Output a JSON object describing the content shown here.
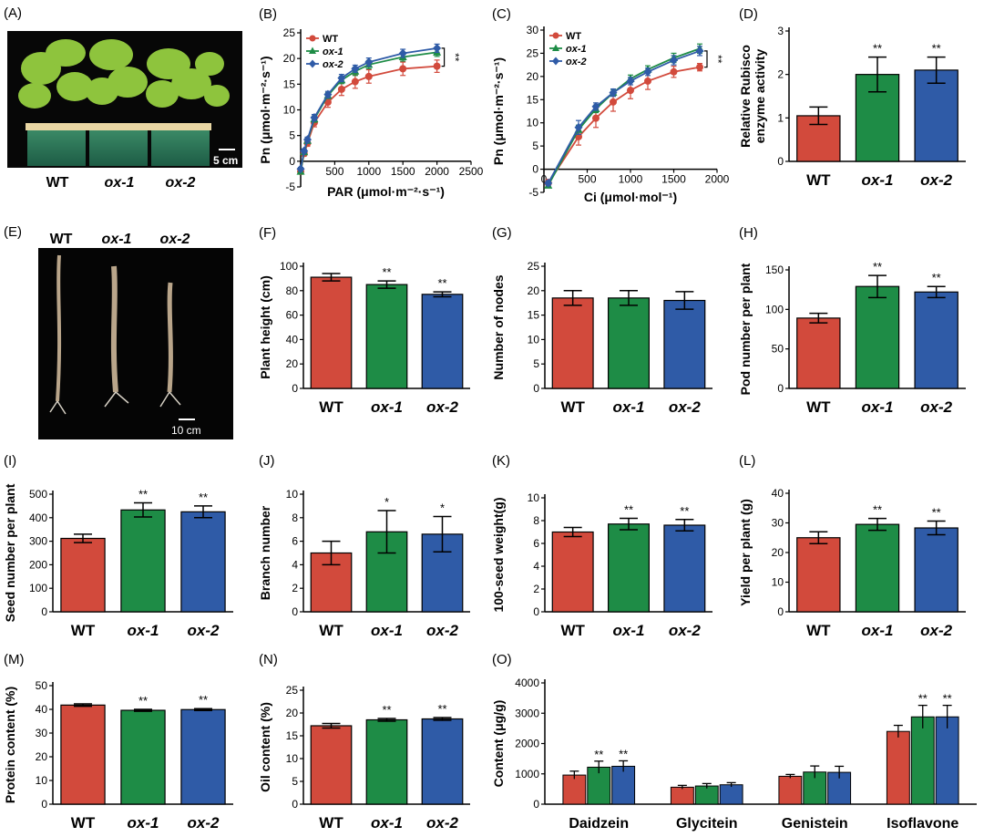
{
  "colors": {
    "WT": "#d24a3c",
    "ox1": "#1e8c46",
    "ox2": "#2f5ba7"
  },
  "panels": {
    "A": {
      "label": "(A)",
      "groups": [
        "WT",
        "ox-1",
        "ox-2"
      ],
      "scalebar": "5 cm"
    },
    "E": {
      "label": "(E)",
      "groups": [
        "WT",
        "ox-1",
        "ox-2"
      ],
      "scalebar": "10 cm"
    }
  },
  "chart_data": [
    {
      "id": "B",
      "panel_label": "(B)",
      "type": "line",
      "xlabel": "PAR (μmol·m⁻²·s⁻¹)",
      "ylabel": "Pn (μmol·m⁻²·s⁻¹)",
      "xlim": [
        0,
        2500
      ],
      "ylim": [
        -5,
        25
      ],
      "xticks": [
        0,
        500,
        1000,
        1500,
        2000,
        2500
      ],
      "yticks": [
        -5,
        0,
        5,
        10,
        15,
        20,
        25
      ],
      "legend": "top-left",
      "significance": "**",
      "x": [
        0,
        50,
        100,
        200,
        400,
        600,
        800,
        1000,
        1500,
        2000
      ],
      "series": [
        {
          "name": "WT",
          "color": "#d24a3c",
          "marker": "circle",
          "values": [
            -2,
            1.5,
            3.5,
            7.5,
            11.5,
            14,
            15.5,
            16.5,
            18,
            18.5
          ],
          "err": [
            0.3,
            0.5,
            0.6,
            0.8,
            1.0,
            1.2,
            1.3,
            1.3,
            1.3,
            1.2
          ]
        },
        {
          "name": "ox-1",
          "color": "#1e8c46",
          "marker": "triangle",
          "values": [
            -2,
            1.8,
            4,
            8.2,
            12.8,
            15.8,
            17.5,
            18.8,
            20.3,
            21.2
          ],
          "err": [
            0.3,
            0.4,
            0.5,
            0.6,
            0.6,
            0.7,
            0.8,
            0.8,
            0.8,
            0.8
          ]
        },
        {
          "name": "ox-2",
          "color": "#2f5ba7",
          "marker": "diamond",
          "values": [
            -1.5,
            2,
            4.2,
            8.5,
            13,
            16.2,
            18,
            19.3,
            21,
            22
          ],
          "err": [
            0.3,
            0.4,
            0.5,
            0.6,
            0.6,
            0.7,
            0.7,
            0.8,
            0.8,
            0.8
          ]
        }
      ]
    },
    {
      "id": "C",
      "panel_label": "(C)",
      "type": "line",
      "xlabel": "Ci (μmol·mol⁻¹)",
      "ylabel": "Pn (μmol·m⁻²·s⁻¹)",
      "xlim": [
        0,
        2000
      ],
      "ylim": [
        -5,
        30
      ],
      "xticks": [
        0,
        500,
        1000,
        1500,
        2000
      ],
      "yticks": [
        -5,
        0,
        5,
        10,
        15,
        20,
        25,
        30
      ],
      "legend": "top-left",
      "significance": "**",
      "x": [
        50,
        400,
        600,
        800,
        1000,
        1200,
        1500,
        1800
      ],
      "series": [
        {
          "name": "WT",
          "color": "#d24a3c",
          "marker": "circle",
          "values": [
            -3,
            7,
            11,
            14.5,
            17,
            19,
            21,
            22
          ],
          "err": [
            0.8,
            1.8,
            2.0,
            2.0,
            1.8,
            1.8,
            1.2,
            0.8
          ]
        },
        {
          "name": "ox-1",
          "color": "#1e8c46",
          "marker": "triangle",
          "values": [
            -3.5,
            8.5,
            13,
            16.5,
            19.5,
            21.5,
            24,
            26
          ],
          "err": [
            0.5,
            1.0,
            0.8,
            0.7,
            0.8,
            0.8,
            1.0,
            1.0
          ]
        },
        {
          "name": "ox-2",
          "color": "#2f5ba7",
          "marker": "diamond",
          "values": [
            -3,
            9,
            13.5,
            16.5,
            19,
            21,
            23.5,
            25.5
          ],
          "err": [
            0.5,
            1.5,
            0.8,
            0.8,
            0.8,
            0.8,
            1.0,
            1.0
          ]
        }
      ]
    },
    {
      "id": "D",
      "panel_label": "(D)",
      "type": "bar",
      "ylabel": "Relative Rubisco enzyme activity",
      "ylim": [
        0,
        3
      ],
      "yticks": [
        0,
        1,
        2,
        3
      ],
      "categories": [
        "WT",
        "ox-1",
        "ox-2"
      ],
      "values": [
        1.05,
        2.0,
        2.1
      ],
      "err": [
        0.2,
        0.4,
        0.3
      ],
      "sig": [
        "",
        "**",
        "**"
      ]
    },
    {
      "id": "F",
      "panel_label": "(F)",
      "type": "bar",
      "ylabel": "Plant height (cm)",
      "ylim": [
        0,
        100
      ],
      "yticks": [
        0,
        20,
        40,
        60,
        80,
        100
      ],
      "categories": [
        "WT",
        "ox-1",
        "ox-2"
      ],
      "values": [
        91,
        85,
        77
      ],
      "err": [
        3,
        3,
        2
      ],
      "sig": [
        "",
        "**",
        "**"
      ]
    },
    {
      "id": "G",
      "panel_label": "(G)",
      "type": "bar",
      "ylabel": "Number of nodes",
      "ylim": [
        0,
        25
      ],
      "yticks": [
        0,
        5,
        10,
        15,
        20,
        25
      ],
      "categories": [
        "WT",
        "ox-1",
        "ox-2"
      ],
      "values": [
        18.5,
        18.5,
        18
      ],
      "err": [
        1.5,
        1.5,
        1.8
      ],
      "sig": [
        "",
        "",
        ""
      ]
    },
    {
      "id": "H",
      "panel_label": "(H)",
      "type": "bar",
      "ylabel": "Pod number per plant",
      "ylim": [
        0,
        150
      ],
      "yticks": [
        0,
        50,
        100,
        150
      ],
      "categories": [
        "WT",
        "ox-1",
        "ox-2"
      ],
      "values": [
        89,
        129,
        122
      ],
      "err": [
        6,
        14,
        7
      ],
      "sig": [
        "",
        "**",
        "**"
      ]
    },
    {
      "id": "I",
      "panel_label": "(I)",
      "type": "bar",
      "ylabel": "Seed number per plant",
      "ylim": [
        0,
        500
      ],
      "yticks": [
        0,
        100,
        200,
        300,
        400,
        500
      ],
      "categories": [
        "WT",
        "ox-1",
        "ox-2"
      ],
      "values": [
        312,
        433,
        425
      ],
      "err": [
        18,
        30,
        25
      ],
      "sig": [
        "",
        "**",
        "**"
      ]
    },
    {
      "id": "J",
      "panel_label": "(J)",
      "type": "bar",
      "ylabel": "Branch number",
      "ylim": [
        0,
        10
      ],
      "yticks": [
        0,
        2,
        4,
        6,
        8,
        10
      ],
      "categories": [
        "WT",
        "ox-1",
        "ox-2"
      ],
      "values": [
        5.0,
        6.8,
        6.6
      ],
      "err": [
        1.0,
        1.8,
        1.5
      ],
      "sig": [
        "",
        "*",
        "*"
      ]
    },
    {
      "id": "K",
      "panel_label": "(K)",
      "type": "bar",
      "ylabel": "100-seed weight(g)",
      "ylim": [
        0,
        10
      ],
      "yticks": [
        0,
        2,
        4,
        6,
        8,
        10
      ],
      "categories": [
        "WT",
        "ox-1",
        "ox-2"
      ],
      "values": [
        7.0,
        7.7,
        7.6
      ],
      "err": [
        0.4,
        0.5,
        0.5
      ],
      "sig": [
        "",
        "**",
        "**"
      ]
    },
    {
      "id": "L",
      "panel_label": "(L)",
      "type": "bar",
      "ylabel": "Yield per plant (g)",
      "ylim": [
        0,
        40
      ],
      "yticks": [
        0,
        10,
        20,
        30,
        40
      ],
      "categories": [
        "WT",
        "ox-1",
        "ox-2"
      ],
      "values": [
        25,
        29.5,
        28.3
      ],
      "err": [
        2,
        2,
        2.3
      ],
      "sig": [
        "",
        "**",
        "**"
      ]
    },
    {
      "id": "M",
      "panel_label": "(M)",
      "type": "bar",
      "ylabel": "Protein content (%)",
      "ylim": [
        0,
        50
      ],
      "yticks": [
        0,
        10,
        20,
        30,
        40,
        50
      ],
      "categories": [
        "WT",
        "ox-1",
        "ox-2"
      ],
      "values": [
        41.8,
        39.6,
        39.9
      ],
      "err": [
        0.5,
        0.4,
        0.4
      ],
      "sig": [
        "",
        "**",
        "**"
      ]
    },
    {
      "id": "N",
      "panel_label": "(N)",
      "type": "bar",
      "ylabel": "Oil content (%)",
      "ylim": [
        0,
        25
      ],
      "yticks": [
        0,
        5,
        10,
        15,
        20,
        25
      ],
      "categories": [
        "WT",
        "ox-1",
        "ox-2"
      ],
      "values": [
        17.2,
        18.5,
        18.7
      ],
      "err": [
        0.5,
        0.3,
        0.3
      ],
      "sig": [
        "",
        "**",
        "**"
      ]
    },
    {
      "id": "O",
      "panel_label": "(O)",
      "type": "bar",
      "ylabel": "Content (μg/g)",
      "ylim": [
        0,
        4000
      ],
      "yticks": [
        0,
        1000,
        2000,
        3000,
        4000
      ],
      "categories": [
        "Daidzein",
        "Glycitein",
        "Genistein",
        "Isoflavone"
      ],
      "series": [
        {
          "name": "WT",
          "color": "#d24a3c",
          "values": [
            960,
            560,
            920,
            2400
          ],
          "err": [
            130,
            60,
            60,
            200
          ],
          "sig": [
            "",
            "",
            "",
            ""
          ]
        },
        {
          "name": "ox-1",
          "color": "#1e8c46",
          "values": [
            1220,
            600,
            1060,
            2880
          ],
          "err": [
            200,
            80,
            200,
            380
          ],
          "sig": [
            "**",
            "",
            "",
            "**"
          ]
        },
        {
          "name": "ox-2",
          "color": "#2f5ba7",
          "values": [
            1250,
            640,
            1050,
            2880
          ],
          "err": [
            180,
            70,
            200,
            380
          ],
          "sig": [
            "**",
            "",
            "",
            "**"
          ]
        }
      ]
    }
  ]
}
